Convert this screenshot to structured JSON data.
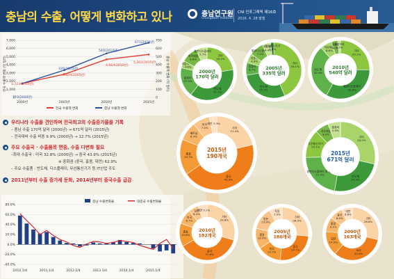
{
  "header": {
    "title": "충남의 수출, 어떻게 변화하고 있나",
    "org_name": "충남연구원",
    "org_en": "ChungNam Institute",
    "issue": "CNI 인포그래픽 제16호",
    "date": "2016. 4. 28 발행"
  },
  "chart_top": {
    "type": "line",
    "ylabel_left": "전국 수출액 변화 (억 달러)",
    "ylabel_right": "충남 수출액 변화 (억 달러)",
    "x_ticks": [
      "2000년",
      "2005년",
      "2010년",
      "2015년"
    ],
    "y_left_ticks": [
      "0",
      "1,000",
      "2,000",
      "3,000",
      "4,000",
      "5,000",
      "6,000",
      "7,000"
    ],
    "y_right_ticks": [
      "0",
      "100",
      "200",
      "300",
      "400",
      "500",
      "600",
      "700"
    ],
    "legend": [
      "전국 수출액 변화",
      "충남 수출액 변화"
    ],
    "labels": [
      "1,723(2000년)",
      "2,844(2005년)",
      "4,664(2010년)",
      "5,265(2015년)",
      "170(2000년)",
      "335(2005년)",
      "540(2010년)",
      "671(2015년)"
    ],
    "colors": {
      "national": "#e03c31",
      "chungnam": "#2a4fa0"
    }
  },
  "chart_data": [
    {
      "type": "line",
      "title": "",
      "x": [
        "2000년",
        "2005년",
        "2010년",
        "2015년"
      ],
      "series": [
        {
          "name": "전국 수출액 변화",
          "values": [
            1723,
            2844,
            4664,
            5265
          ]
        },
        {
          "name": "충남 수출액 변화",
          "values": [
            170,
            335,
            540,
            671
          ]
        }
      ],
      "xlabel": "",
      "ylabel": "전국 수출액 변화 (억 달러)",
      "ylim": [
        0,
        7000
      ],
      "y2label": "충남 수출액 변화 (억 달러)",
      "y2lim": [
        0,
        700
      ]
    },
    {
      "type": "bar",
      "title": "",
      "categories": [
        "2010.1/4",
        "2010.2/4",
        "2010.3/4",
        "2010.4/4",
        "2011.1/4",
        "2011.2/4",
        "2011.3/4",
        "2011.4/4",
        "2012.1/4",
        "2012.2/4",
        "2012.3/4",
        "2012.4/4",
        "2013.1/4",
        "2013.2/4",
        "2013.3/4",
        "2013.4/4",
        "2014.1/4",
        "2014.2/4",
        "2014.3/4",
        "2014.4/4",
        "2015.1/4",
        "2015.2/4",
        "2015.3/4",
        "2015.4/4"
      ],
      "series": [
        {
          "name": "충남 수출변화율",
          "values": [
            58,
            42,
            30,
            22,
            25,
            15,
            8,
            3,
            2,
            -4,
            -2,
            4,
            2,
            3,
            5,
            9,
            5,
            3,
            2,
            0,
            -8,
            -14,
            -12,
            -18
          ]
        },
        {
          "name": "대중국 수출변화율",
          "values": [
            62,
            48,
            35,
            20,
            28,
            18,
            10,
            5,
            -2,
            -6,
            1,
            6,
            5,
            2,
            4,
            8,
            6,
            4,
            -2,
            -6,
            -10,
            2,
            10,
            -8
          ]
        }
      ],
      "y_ticks": [
        "-40.0%",
        "-20.0%",
        "0.0%",
        "20.0%",
        "40.0%",
        "60.0%",
        "80.0%"
      ],
      "x_ticks": [
        "2010.1/4",
        "2011.1/4",
        "2012.1/4",
        "2013.1/4",
        "2014.1/4",
        "2015.1/4"
      ],
      "ylim": [
        -40,
        80
      ]
    }
  ],
  "bullets": {
    "h1": "우리나라 수출을 견인하며 전국최고의 수출증가율을 기록",
    "s1a": "– 충남 수출 170억 달러 (2000년) → 671억 달러 (2015년)",
    "s1b": "– 전국대비 수출 비중 9.9% (2000년) → 12.7% (2015년)",
    "h2": "주요 수출국 · 수출품목 편중, 수출 다변화 필요",
    "s2a": "–최대 수출국 : 미국 32.8% (2000년) → 중국 43.9% (2015년)",
    "s2b": "※ 중화권 (중국, 홍콩, 대만) 62.9%",
    "s2c": "– 주요 수출품 : 반도체, 디스플레이, 무선통신기기 등 IT산업 주도",
    "h3": "2011년부터 수출 증가세 둔화, 2014년부터 중국수출 급감"
  },
  "chart_bottom_legend": [
    "충남 수출변화율",
    "대중국 수출변화율"
  ],
  "product_donuts": [
    {
      "center": "2000년\n170억 달러",
      "labels": [
        "기타\n19.1%",
        "반도체\n32.1%",
        "컴퓨터\n15.3%",
        "자동차부품\n3.8%",
        "화학제품\n8.6%",
        "평판디스플레이\n5.7%"
      ]
    },
    {
      "center": "2005년\n335억 달러",
      "labels": [
        "기타\n39.1%",
        "반도체\n25.7%",
        "컴퓨터\n6.7%",
        "자동차\n4.9%",
        "평판디스플레이\n7.5%",
        "석유제품\n4.4%",
        "무선통신기기\n1.6%"
      ]
    },
    {
      "center": "2010년\n540억 달러",
      "labels": [
        "기타\n25.1%",
        "평판디스플레이\n32.8%",
        "반도체\n30.4%",
        "석유제품\n6.6%",
        "컴퓨터\n3.5%",
        "합성수지\n1.5%"
      ]
    },
    {
      "center": "2015년\n671억 달러",
      "labels": [
        "기타\n28.5%",
        "반도체\n24.3%",
        "평판디스플레이 및 센서\n21.9%",
        "무선통신기기\n13.1%",
        "석유제품\n6.4%",
        "컴퓨터\n5.9%"
      ]
    }
  ],
  "country_donuts": [
    {
      "center": "2015년\n190개국",
      "labels": [
        "기타\n21.4%",
        "중국\n43.9%",
        "홍콩\n15.7%",
        "베트남\n8.3%",
        "미국\n7.4%",
        "대만 3.3%"
      ]
    },
    {
      "center": "2010년\n182개국",
      "labels": [
        "기타\n29.8%",
        "중국\n37.6%",
        "홍콩\n13.6%",
        "미국\n8.7%",
        "일본\n6.1%",
        "대만 5.1%"
      ]
    },
    {
      "center": "2005년\n180개국",
      "labels": [
        "기타\n26.5%",
        "중국\n24.7%",
        "미국\n14.7%",
        "홍콩\n12.5%",
        "일본\n13.9%",
        "독일\n7.9%"
      ]
    },
    {
      "center": "2000년\n163개국",
      "labels": [
        "기타\n28.6%",
        "미국\n32.8%",
        "일본\n14.9%",
        "홍콩\n9.1%",
        "중국\n8.0%",
        "대만\n6.6%"
      ]
    }
  ]
}
